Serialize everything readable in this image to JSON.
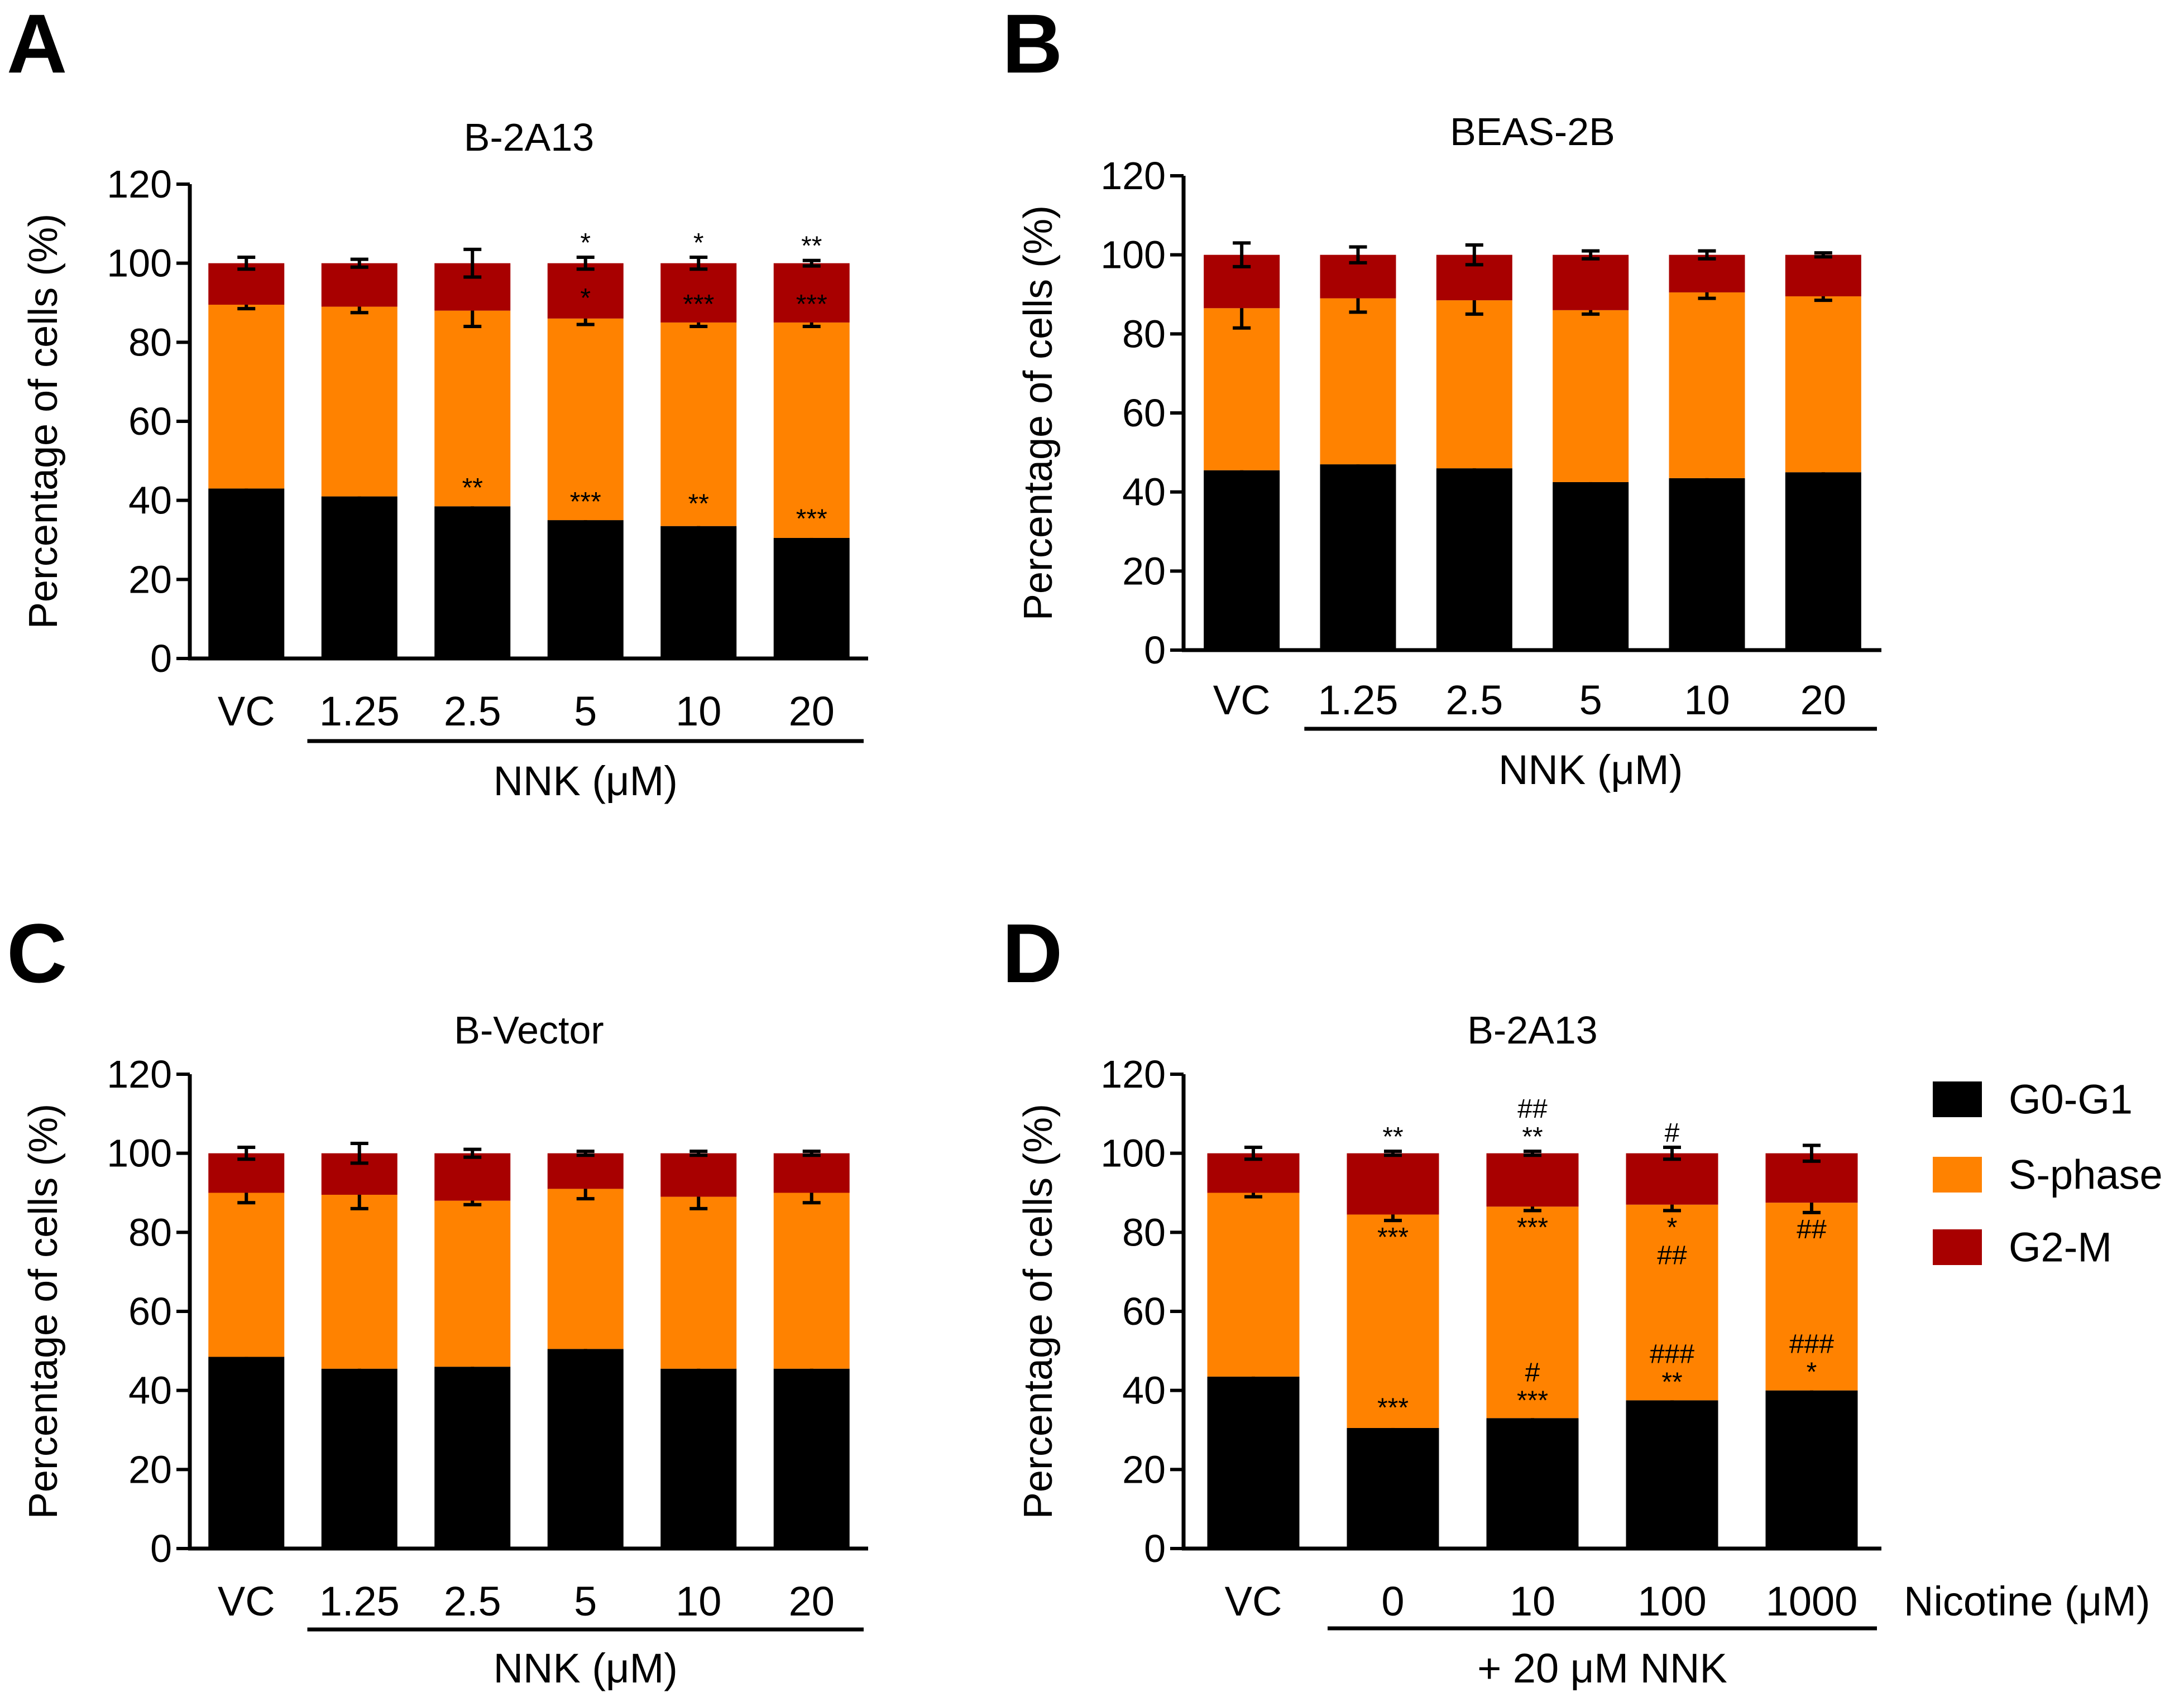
{
  "colors": {
    "g0g1": "#000000",
    "sphase": "#FF8200",
    "g2m": "#A80000"
  },
  "legend": [
    {
      "key": "g0g1",
      "label": "G0-G1"
    },
    {
      "key": "sphase",
      "label": "S-phase"
    },
    {
      "key": "g2m",
      "label": "G2-M"
    }
  ],
  "chart_data": [
    {
      "panel": "A",
      "type": "bar",
      "stacked": true,
      "title": "B-2A13",
      "ylabel": "Percentage of cells (%)",
      "ylim": [
        0,
        120
      ],
      "yticks": [
        0,
        20,
        40,
        60,
        80,
        100,
        120
      ],
      "categories": [
        "VC",
        "1.25",
        "2.5",
        "5",
        "10",
        "20"
      ],
      "group_label": "NNK (μM)",
      "group_range": [
        1,
        5
      ],
      "series": [
        {
          "name": "G0-G1",
          "key": "g0g1",
          "values": [
            43,
            41,
            38.5,
            35,
            33.5,
            30.5
          ],
          "err": [
            1.5,
            1.5,
            1,
            1,
            2,
            1.2
          ]
        },
        {
          "name": "S-phase",
          "key": "sphase",
          "values": [
            46.5,
            48,
            49.5,
            51,
            51.5,
            54.5
          ],
          "err": [
            1,
            1.5,
            4,
            1.5,
            1,
            1
          ]
        },
        {
          "name": "G2-M",
          "key": "g2m",
          "values": [
            10.5,
            11,
            12,
            14,
            15,
            15
          ],
          "err": [
            1.5,
            1,
            3.5,
            1.5,
            1.5,
            0.7
          ]
        }
      ],
      "annotations": [
        {
          "cat": 2,
          "series": 0,
          "text": "**"
        },
        {
          "cat": 3,
          "series": 0,
          "text": "***"
        },
        {
          "cat": 4,
          "series": 0,
          "text": "**"
        },
        {
          "cat": 5,
          "series": 0,
          "text": "***"
        },
        {
          "cat": 3,
          "series": 1,
          "text": "*"
        },
        {
          "cat": 4,
          "series": 1,
          "text": "***"
        },
        {
          "cat": 5,
          "series": 1,
          "text": "***"
        },
        {
          "cat": 3,
          "series": 2,
          "text": "*"
        },
        {
          "cat": 4,
          "series": 2,
          "text": "*"
        },
        {
          "cat": 5,
          "series": 2,
          "text": "**"
        }
      ]
    },
    {
      "panel": "B",
      "type": "bar",
      "stacked": true,
      "title": "BEAS-2B",
      "ylabel": "Percentage of cells (%)",
      "ylim": [
        0,
        120
      ],
      "yticks": [
        0,
        20,
        40,
        60,
        80,
        100,
        120
      ],
      "categories": [
        "VC",
        "1.25",
        "2.5",
        "5",
        "10",
        "20"
      ],
      "group_label": "NNK (μM)",
      "group_range": [
        1,
        5
      ],
      "series": [
        {
          "name": "G0-G1",
          "key": "g0g1",
          "values": [
            45.5,
            47,
            46,
            42.5,
            43.5,
            45
          ],
          "err": [
            1.5,
            2,
            1,
            0.5,
            1.5,
            1.5
          ]
        },
        {
          "name": "S-phase",
          "key": "sphase",
          "values": [
            41,
            42,
            42.5,
            43.5,
            47,
            44.5
          ],
          "err": [
            5,
            3.5,
            3.5,
            1,
            1.5,
            1
          ]
        },
        {
          "name": "G2-M",
          "key": "g2m",
          "values": [
            13.5,
            11,
            11.5,
            14,
            9.5,
            10.5
          ],
          "err": [
            3,
            2,
            2.5,
            1,
            1,
            0.5
          ]
        }
      ],
      "annotations": []
    },
    {
      "panel": "C",
      "type": "bar",
      "stacked": true,
      "title": "B-Vector",
      "ylabel": "Percentage of cells (%)",
      "ylim": [
        0,
        120
      ],
      "yticks": [
        0,
        20,
        40,
        60,
        80,
        100,
        120
      ],
      "categories": [
        "VC",
        "1.25",
        "2.5",
        "5",
        "10",
        "20"
      ],
      "group_label": "NNK (μM)",
      "group_range": [
        1,
        5
      ],
      "series": [
        {
          "name": "G0-G1",
          "key": "g0g1",
          "values": [
            48.5,
            45.5,
            46,
            50.5,
            45.5,
            45.5
          ],
          "err": [
            2,
            1,
            1,
            3,
            3,
            3.5
          ]
        },
        {
          "name": "S-phase",
          "key": "sphase",
          "values": [
            41.5,
            44,
            42,
            40.5,
            43.5,
            44.5
          ],
          "err": [
            2.5,
            3.5,
            1,
            2.5,
            3,
            2.5
          ]
        },
        {
          "name": "G2-M",
          "key": "g2m",
          "values": [
            10,
            10.5,
            12,
            9,
            11,
            10
          ],
          "err": [
            1.5,
            2.5,
            1,
            0.5,
            0.5,
            0.5
          ]
        }
      ],
      "annotations": []
    },
    {
      "panel": "D",
      "type": "bar",
      "stacked": true,
      "title": "B-2A13",
      "ylabel": "Percentage of cells (%)",
      "ylim": [
        0,
        120
      ],
      "yticks": [
        0,
        20,
        40,
        60,
        80,
        100,
        120
      ],
      "categories": [
        "VC",
        "0",
        "10",
        "100",
        "1000"
      ],
      "cat_axis_label": "Nicotine (μM)",
      "group_label": "+ 20 μM NNK",
      "group_range": [
        1,
        4
      ],
      "series": [
        {
          "name": "G0-G1",
          "key": "g0g1",
          "values": [
            43.5,
            30.5,
            33,
            37.5,
            40
          ],
          "err": [
            1.5,
            1.5,
            0.8,
            1,
            1
          ]
        },
        {
          "name": "S-phase",
          "key": "sphase",
          "values": [
            46.5,
            54,
            53.5,
            49.5,
            47.5
          ],
          "err": [
            1,
            1.5,
            1,
            1.5,
            2.5
          ]
        },
        {
          "name": "G2-M",
          "key": "g2m",
          "values": [
            10,
            15.5,
            13.5,
            13,
            12.5
          ],
          "err": [
            1.5,
            0.5,
            0.5,
            1.5,
            2
          ]
        }
      ],
      "annotations": [
        {
          "cat": 1,
          "series": 0,
          "text": "***"
        },
        {
          "cat": 2,
          "series": 0,
          "lines": [
            "#",
            "***"
          ]
        },
        {
          "cat": 3,
          "series": 0,
          "lines": [
            "###",
            "**"
          ]
        },
        {
          "cat": 4,
          "series": 0,
          "lines": [
            "###",
            "*"
          ]
        },
        {
          "cat": 1,
          "series": 1,
          "text": "***",
          "below": true
        },
        {
          "cat": 2,
          "series": 1,
          "text": "***",
          "below": true
        },
        {
          "cat": 3,
          "series": 1,
          "lines": [
            "*",
            "##"
          ],
          "below": true
        },
        {
          "cat": 4,
          "series": 1,
          "text": "##",
          "below": true
        },
        {
          "cat": 1,
          "series": 2,
          "text": "**"
        },
        {
          "cat": 2,
          "series": 2,
          "lines": [
            "##",
            "**"
          ]
        },
        {
          "cat": 3,
          "series": 2,
          "text": "#"
        }
      ]
    }
  ]
}
